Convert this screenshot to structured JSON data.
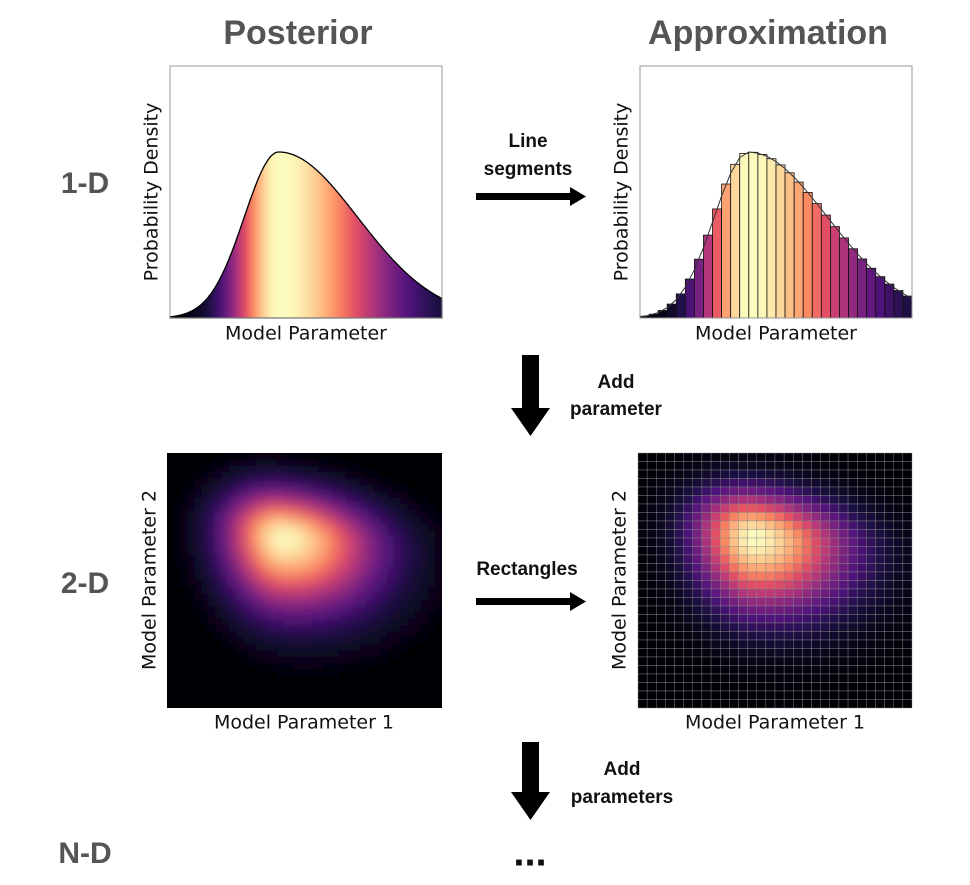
{
  "columns": [
    "Posterior",
    "Approximation"
  ],
  "rows": [
    "1-D",
    "2-D",
    "N-D"
  ],
  "panels": {
    "one_d": {
      "y_label": "Probability Density",
      "x_label": "Model Parameter"
    },
    "two_d": {
      "y_label": "Model Parameter 2",
      "x_label": "Model Parameter 1"
    }
  },
  "transitions": [
    {
      "lines": [
        "Line",
        "segments"
      ]
    },
    {
      "lines": [
        "Rectangles"
      ]
    },
    {
      "lines": [
        "Add",
        "parameter"
      ]
    },
    {
      "lines": [
        "Add",
        "parameters"
      ]
    }
  ],
  "ellipsis": "..."
}
